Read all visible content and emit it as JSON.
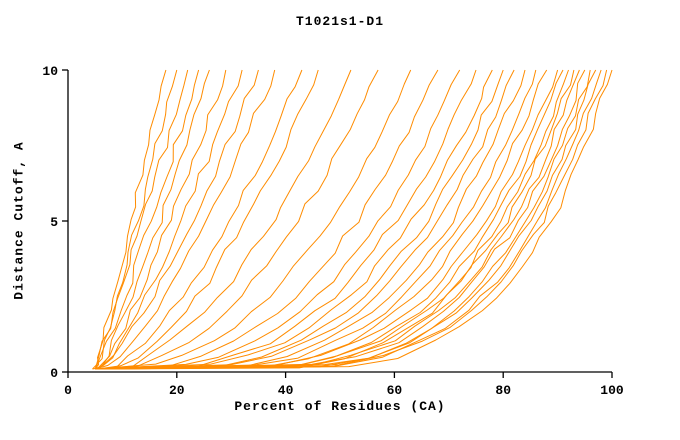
{
  "chart_data": {
    "type": "line",
    "title": "T1021s1-D1",
    "xlabel": "Percent of Residues (CA)",
    "ylabel": "Distance Cutoff, A",
    "xlim": [
      0,
      100
    ],
    "ylim": [
      0,
      10
    ],
    "x_ticks": [
      0,
      20,
      40,
      60,
      80,
      100
    ],
    "y_ticks": [
      0,
      5,
      10
    ],
    "grid": false,
    "legend": "none",
    "line_color": "#FF8C00",
    "axis_color": "#000000",
    "background_color": "#FFFFFF",
    "series_meaning": "percent of CA residues under each distance cutoff, one curve per model",
    "y_cutoffs": [
      0.1,
      0.2,
      0.5,
      1,
      2,
      3,
      5,
      7,
      9,
      10
    ],
    "series": [
      [
        5.0,
        5.3,
        5.7,
        6.3,
        7.6,
        8.9,
        11.5,
        14.1,
        16.7,
        18.0
      ],
      [
        5.0,
        5.4,
        5.9,
        6.7,
        8.3,
        9.8,
        12.8,
        15.7,
        18.6,
        20.0
      ],
      [
        4.5,
        5.0,
        5.6,
        6.6,
        8.5,
        10.3,
        13.7,
        17.1,
        20.4,
        22.0
      ],
      [
        5.0,
        5.6,
        6.4,
        7.5,
        9.6,
        11.6,
        15.3,
        18.9,
        22.3,
        24.0
      ],
      [
        5.5,
        6.2,
        7.1,
        8.4,
        10.7,
        12.9,
        16.9,
        20.6,
        24.3,
        26.0
      ],
      [
        5.0,
        6.0,
        7.2,
        8.8,
        11.6,
        14.2,
        18.8,
        23.0,
        27.1,
        29.0
      ],
      [
        5.0,
        6.4,
        7.8,
        9.7,
        12.9,
        15.8,
        20.9,
        25.6,
        29.9,
        32.0
      ],
      [
        4.5,
        6.3,
        8.0,
        10.3,
        14.1,
        17.3,
        23.0,
        28.1,
        32.8,
        35.0
      ],
      [
        5.0,
        7.3,
        9.3,
        11.9,
        16.1,
        19.6,
        25.6,
        30.9,
        35.7,
        38.0
      ],
      [
        5.0,
        8.4,
        10.9,
        14.1,
        19.0,
        23.0,
        29.7,
        35.5,
        40.6,
        43.0
      ],
      [
        5.5,
        9.7,
        12.6,
        16.2,
        21.4,
        25.7,
        32.6,
        38.4,
        43.6,
        46.0
      ],
      [
        5.0,
        11.2,
        14.9,
        19.2,
        25.4,
        30.1,
        37.8,
        44.0,
        49.5,
        52.0
      ],
      [
        5.0,
        13.0,
        17.3,
        22.2,
        29.0,
        34.2,
        42.3,
        48.8,
        54.5,
        57.0
      ],
      [
        5.0,
        15.8,
        21.0,
        26.6,
        34.1,
        39.6,
        48.0,
        54.7,
        60.4,
        63.0
      ],
      [
        5.0,
        18.7,
        24.6,
        30.6,
        38.6,
        44.4,
        53.1,
        59.8,
        65.5,
        68.0
      ],
      [
        5.0,
        21.4,
        27.8,
        34.2,
        42.5,
        48.5,
        57.2,
        63.9,
        69.5,
        72.0
      ],
      [
        5.5,
        23.9,
        30.6,
        37.3,
        45.7,
        51.7,
        60.4,
        67.1,
        72.6,
        75.0
      ],
      [
        5.0,
        25.9,
        33.0,
        40.0,
        48.7,
        54.6,
        63.5,
        70.1,
        75.6,
        78.0
      ],
      [
        5.0,
        28.2,
        35.5,
        42.6,
        51.3,
        57.3,
        65.9,
        72.4,
        77.7,
        80.0
      ],
      [
        5.0,
        29.8,
        37.3,
        44.5,
        53.3,
        59.3,
        68.0,
        74.5,
        79.7,
        82.0
      ],
      [
        5.0,
        32.5,
        40.2,
        47.4,
        56.2,
        62.1,
        70.5,
        76.7,
        81.8,
        84.0
      ],
      [
        5.0,
        34.3,
        42.2,
        49.5,
        58.3,
        64.2,
        72.6,
        78.8,
        83.8,
        86.0
      ],
      [
        5.0,
        36.2,
        44.3,
        51.6,
        60.5,
        66.4,
        74.8,
        80.9,
        85.8,
        88.0
      ],
      [
        5.0,
        38.2,
        46.4,
        53.9,
        62.8,
        68.7,
        77.0,
        83.0,
        87.9,
        90.0
      ],
      [
        5.5,
        40.3,
        48.4,
        55.9,
        64.6,
        70.3,
        78.4,
        84.2,
        88.9,
        91.0
      ],
      [
        5.0,
        41.8,
        50.0,
        57.4,
        66.1,
        71.7,
        79.7,
        85.4,
        90.0,
        92.0
      ],
      [
        5.0,
        42.2,
        50.5,
        58.0,
        66.8,
        72.5,
        80.6,
        86.3,
        91.0,
        93.0
      ],
      [
        5.0,
        44.2,
        52.4,
        59.8,
        68.5,
        74.1,
        81.9,
        87.6,
        92.0,
        94.0
      ],
      [
        5.0,
        44.6,
        53.0,
        60.4,
        69.2,
        74.8,
        82.8,
        88.5,
        93.0,
        95.0
      ],
      [
        5.0,
        46.6,
        55.0,
        62.4,
        71.0,
        76.5,
        84.2,
        89.7,
        94.1,
        96.0
      ],
      [
        5.0,
        47.0,
        55.5,
        63.1,
        71.7,
        77.3,
        85.0,
        90.7,
        95.1,
        97.0
      ],
      [
        5.0,
        49.3,
        57.6,
        65.0,
        73.4,
        78.9,
        86.5,
        91.9,
        96.1,
        98.0
      ],
      [
        5.0,
        49.7,
        58.2,
        65.6,
        74.2,
        79.7,
        87.3,
        92.8,
        97.1,
        99.0
      ],
      [
        5.0,
        52.0,
        60.4,
        67.7,
        76.1,
        81.5,
        88.9,
        94.1,
        98.2,
        100.0
      ]
    ]
  }
}
